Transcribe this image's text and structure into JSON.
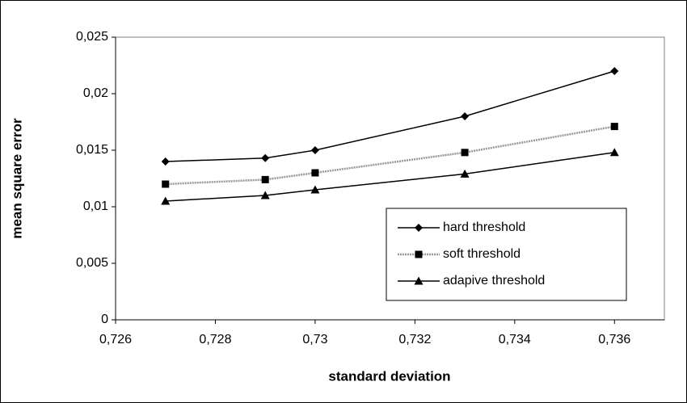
{
  "chart_data": {
    "type": "line",
    "xlabel": "standard deviation",
    "ylabel": "mean square error",
    "x": [
      0.727,
      0.729,
      0.73,
      0.733,
      0.736
    ],
    "series": [
      {
        "name": "hard threshold",
        "color": "#000000",
        "marker": "diamond",
        "line_style": "solid",
        "values": [
          0.014,
          0.0143,
          0.015,
          0.018,
          0.022
        ]
      },
      {
        "name": "soft threshold",
        "color": "#999999",
        "marker": "square",
        "line_style": "dotted",
        "values": [
          0.012,
          0.0124,
          0.013,
          0.0148,
          0.0171
        ]
      },
      {
        "name": "adapive threshold",
        "color": "#000000",
        "marker": "triangle",
        "line_style": "solid",
        "values": [
          0.0105,
          0.011,
          0.0115,
          0.0129,
          0.0148
        ]
      }
    ],
    "xlim": [
      0.726,
      0.737
    ],
    "xticks": [
      {
        "value": 0.726,
        "label": "0,726"
      },
      {
        "value": 0.728,
        "label": "0,728"
      },
      {
        "value": 0.73,
        "label": "0,73"
      },
      {
        "value": 0.732,
        "label": "0,732"
      },
      {
        "value": 0.734,
        "label": "0,734"
      },
      {
        "value": 0.736,
        "label": "0,736"
      }
    ],
    "ylim": [
      0,
      0.025
    ],
    "yticks": [
      0,
      {
        "value": 0.005,
        "label": "0,005"
      },
      {
        "value": 0.01,
        "label": "0,01"
      },
      {
        "value": 0.015,
        "label": "0,015"
      },
      {
        "value": 0.02,
        "label": "0,02"
      },
      {
        "value": 0.025,
        "label": "0,025"
      }
    ],
    "grid": false,
    "legend": "lower right"
  }
}
